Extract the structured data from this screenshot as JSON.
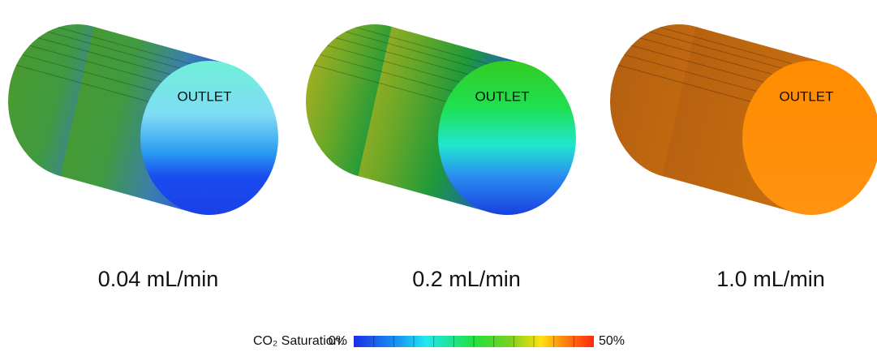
{
  "panels": [
    {
      "face_label": "OUTLET",
      "caption": "0.04 mL/min"
    },
    {
      "face_label": "OUTLET",
      "caption": "0.2 mL/min"
    },
    {
      "face_label": "OUTLET",
      "caption": "1.0 mL/min"
    }
  ],
  "colorbar": {
    "title": "CO₂ Saturation:",
    "min_label": "0%",
    "max_label": "50%"
  }
}
